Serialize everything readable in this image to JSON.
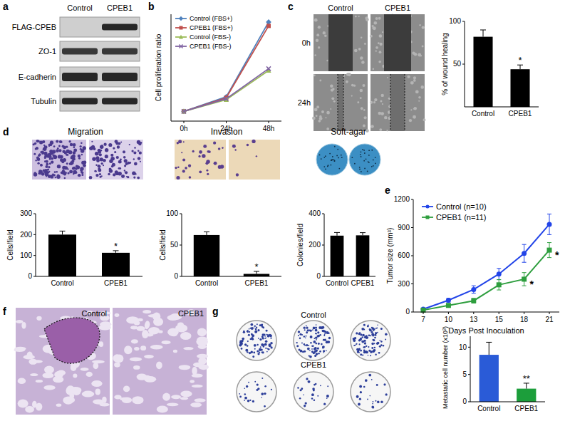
{
  "panel_letters": [
    "a",
    "b",
    "c",
    "d",
    "e",
    "f",
    "g"
  ],
  "blot": {
    "lanes": [
      "Control",
      "CPEB1"
    ],
    "rows": [
      "FLAG-CPEB",
      "ZO-1",
      "E-cadherin",
      "Tubulin"
    ]
  },
  "wound_images": {
    "columns": [
      "Control",
      "CPEB1"
    ],
    "rows": [
      "0h",
      "24h"
    ]
  },
  "lung_images": {
    "labels": [
      "Control",
      "CPEB1"
    ]
  },
  "colony_plates": {
    "rows": [
      "Control",
      "CPEB1"
    ]
  },
  "chart_data": [
    {
      "type": "line",
      "y_label": "Cell proliferation ratio",
      "categories": [
        "0h",
        "24h",
        "48h"
      ],
      "ylim": [
        0,
        11
      ],
      "tick_labels": "x",
      "legend": "top-left",
      "series": [
        {
          "name": "Control (FBS+)",
          "color": "#4f81bd",
          "marker": "diamond",
          "values": [
            1,
            2.5,
            10.2
          ]
        },
        {
          "name": "CPEB1 (FBS+)",
          "color": "#c0504d",
          "marker": "square",
          "values": [
            1,
            2.4,
            9.8
          ]
        },
        {
          "name": "Control (FBS-)",
          "color": "#9bbb59",
          "marker": "triangle",
          "values": [
            1,
            2.2,
            5.2
          ]
        },
        {
          "name": "CPEB1 (FBS-)",
          "color": "#8064a2",
          "marker": "x",
          "values": [
            1,
            2.3,
            5.4
          ]
        }
      ]
    },
    {
      "type": "bar",
      "y_label": "% of wound healing",
      "categories": [
        "Control",
        "CPEB1"
      ],
      "values": [
        82,
        44
      ],
      "errors": [
        8,
        5
      ],
      "annotations": [
        null,
        "*"
      ],
      "color": "#000000",
      "ylim": [
        0,
        100
      ],
      "yticks": [
        50,
        100
      ]
    },
    {
      "type": "bar",
      "title": "Migration",
      "y_label": "Cells/field",
      "categories": [
        "Control",
        "CPEB1"
      ],
      "values": [
        200,
        113
      ],
      "errors": [
        17,
        10
      ],
      "annotations": [
        null,
        "*"
      ],
      "color": "#000000",
      "ylim": [
        0,
        300
      ],
      "yticks": [
        0,
        100,
        200,
        300
      ]
    },
    {
      "type": "bar",
      "title": "Invasion",
      "y_label": "Cells/field",
      "categories": [
        "Control",
        "CPEB1"
      ],
      "values": [
        66,
        4
      ],
      "errors": [
        5,
        4
      ],
      "annotations": [
        null,
        "*"
      ],
      "color": "#000000",
      "ylim": [
        0,
        100
      ],
      "yticks": [
        0,
        50,
        100
      ]
    },
    {
      "type": "bar",
      "title": "Soft-agar",
      "y_label": "Colonies/field",
      "categories": [
        "Control",
        "CPEB1"
      ],
      "values": [
        260,
        262
      ],
      "errors": [
        20,
        17
      ],
      "color": "#000000",
      "ylim": [
        0,
        400
      ],
      "yticks": [
        0,
        200,
        400
      ]
    },
    {
      "type": "line",
      "y_label": "Tumor size (mm³)",
      "x_label": "Days Post Inoculation",
      "categories": [
        "7",
        "10",
        "13",
        "15",
        "18",
        "21"
      ],
      "ylim": [
        0,
        1200
      ],
      "yticks": [
        0,
        300,
        600,
        900,
        1200
      ],
      "legend": "top-left",
      "series": [
        {
          "name": "Control (n=10)",
          "color": "#2244e8",
          "marker": "circle",
          "values": [
            30,
            125,
            240,
            405,
            625,
            935
          ],
          "errors": [
            8,
            20,
            40,
            60,
            95,
            110
          ]
        },
        {
          "name": "CPEB1 (n=11)",
          "color": "#2e9e3e",
          "marker": "square",
          "values": [
            20,
            70,
            120,
            290,
            350,
            660
          ],
          "errors": [
            5,
            15,
            25,
            55,
            70,
            80
          ],
          "annotations": [
            null,
            null,
            null,
            null,
            "*",
            "*"
          ]
        }
      ]
    },
    {
      "type": "bar",
      "y_label": "Metastatic cell number (x10³)",
      "categories": [
        "Control",
        "CPEB1"
      ],
      "values": [
        8.6,
        2.4
      ],
      "errors": [
        2.3,
        1
      ],
      "annotations": [
        null,
        "**"
      ],
      "colors": [
        "#2a5bd7",
        "#1c9e3b"
      ],
      "ylim": [
        0,
        12
      ],
      "yticks": [
        0,
        5,
        10
      ]
    }
  ]
}
